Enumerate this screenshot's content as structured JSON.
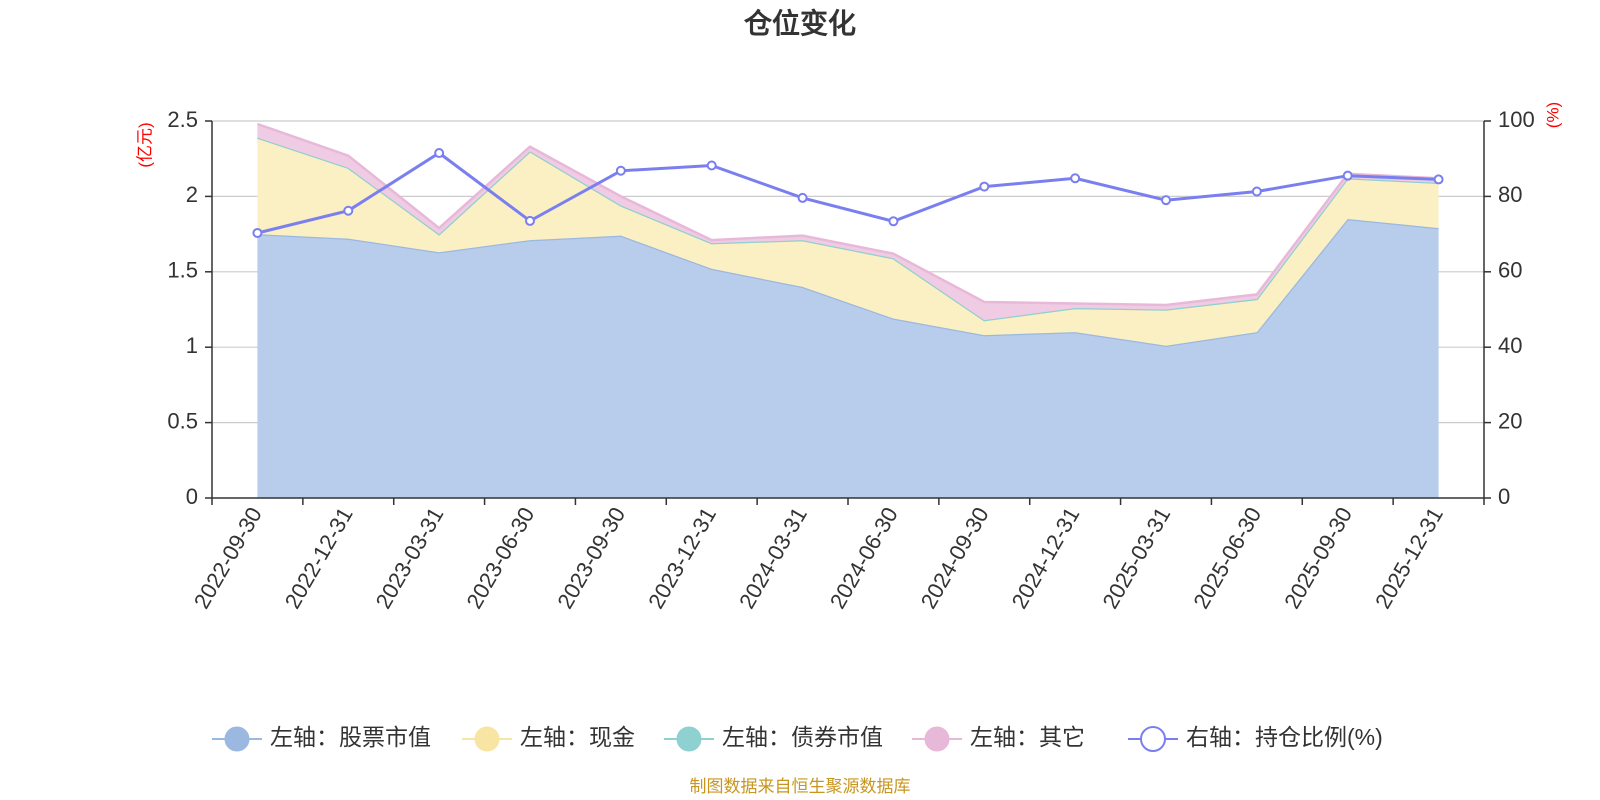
{
  "chart_data": {
    "type": "area",
    "title": "仓位变化",
    "left_axis_unit": "(亿元)",
    "right_axis_unit": "(%)",
    "categories": [
      "2022-09-30",
      "2022-12-31",
      "2023-03-31",
      "2023-06-30",
      "2023-09-30",
      "2023-12-31",
      "2024-03-31",
      "2024-06-30",
      "2024-09-30",
      "2024-12-31",
      "2025-03-31",
      "2025-06-30",
      "2025-09-30",
      "2025-12-31"
    ],
    "ylim_left": [
      0,
      2.5
    ],
    "yticks_left": [
      "0",
      "0.5",
      "1",
      "1.5",
      "2",
      "2.5"
    ],
    "ylim_right": [
      0,
      100
    ],
    "yticks_right": [
      "0",
      "20",
      "40",
      "60",
      "80",
      "100"
    ],
    "series": [
      {
        "name": "左轴：股票市值",
        "axis": "left",
        "stacked": true,
        "color": "#9bb8e0",
        "fill": "#b8cdeb",
        "values": [
          1.75,
          1.72,
          1.63,
          1.71,
          1.74,
          1.52,
          1.4,
          1.19,
          1.08,
          1.1,
          1.01,
          1.1,
          1.85,
          1.79
        ]
      },
      {
        "name": "左轴：现金",
        "axis": "left",
        "stacked": true,
        "color": "#f9e5a3",
        "fill": "#fbefc4",
        "values": [
          0.64,
          0.47,
          0.12,
          0.59,
          0.2,
          0.17,
          0.31,
          0.4,
          0.1,
          0.16,
          0.24,
          0.22,
          0.27,
          0.3
        ]
      },
      {
        "name": "左轴：债券市值",
        "axis": "left",
        "stacked": true,
        "color": "#8fd0d0",
        "fill": "#b5e2e2",
        "values": [
          0,
          0,
          0,
          0,
          0,
          0,
          0,
          0,
          0,
          0,
          0,
          0,
          0,
          0
        ]
      },
      {
        "name": "左轴：其它",
        "axis": "left",
        "stacked": true,
        "color": "#e8b8d8",
        "fill": "#f0cce4",
        "values": [
          0.09,
          0.08,
          0.04,
          0.03,
          0.06,
          0.02,
          0.03,
          0.03,
          0.12,
          0.03,
          0.03,
          0.03,
          0.03,
          0.03
        ]
      },
      {
        "name": "右轴：持仓比例(%)",
        "axis": "right",
        "stacked": false,
        "color": "#7a7ff0",
        "values": [
          70.3,
          76.2,
          91.5,
          73.5,
          86.8,
          88.2,
          79.6,
          73.4,
          82.6,
          84.8,
          79.0,
          81.3,
          85.5,
          84.5
        ]
      }
    ],
    "source_note": "制图数据来自恒生聚源数据库"
  }
}
